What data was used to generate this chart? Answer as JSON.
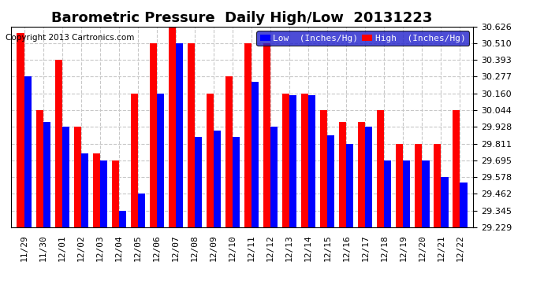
{
  "title": "Barometric Pressure  Daily High/Low  20131223",
  "copyright": "Copyright 2013 Cartronics.com",
  "categories": [
    "11/29",
    "11/30",
    "12/01",
    "12/02",
    "12/03",
    "12/04",
    "12/05",
    "12/06",
    "12/07",
    "12/08",
    "12/09",
    "12/10",
    "12/11",
    "12/12",
    "12/13",
    "12/14",
    "12/15",
    "12/16",
    "12/17",
    "12/18",
    "12/19",
    "12/20",
    "12/21",
    "12/22"
  ],
  "low_values": [
    30.277,
    29.96,
    29.928,
    29.741,
    29.695,
    29.345,
    29.462,
    30.16,
    30.51,
    29.86,
    29.9,
    29.86,
    30.24,
    29.928,
    30.15,
    30.15,
    29.87,
    29.811,
    29.928,
    29.695,
    29.695,
    29.695,
    29.578,
    29.54
  ],
  "high_values": [
    30.58,
    30.044,
    30.393,
    29.928,
    29.741,
    29.695,
    30.16,
    30.51,
    30.626,
    30.51,
    30.16,
    30.277,
    30.51,
    30.51,
    30.16,
    30.16,
    30.044,
    29.96,
    29.96,
    30.044,
    29.811,
    29.811,
    29.811,
    30.044
  ],
  "low_color": "#0000ff",
  "high_color": "#ff0000",
  "bg_color": "#ffffff",
  "plot_bg_color": "#ffffff",
  "grid_color": "#c8c8c8",
  "ymin": 29.229,
  "ymax": 30.626,
  "yticks": [
    29.229,
    29.345,
    29.462,
    29.578,
    29.695,
    29.811,
    29.928,
    30.044,
    30.16,
    30.277,
    30.393,
    30.51,
    30.626
  ],
  "legend_low_label": "Low  (Inches/Hg)",
  "legend_high_label": "High  (Inches/Hg)",
  "title_fontsize": 13,
  "copyright_fontsize": 7.5,
  "tick_fontsize": 8,
  "legend_fontsize": 8,
  "bar_width": 0.38
}
